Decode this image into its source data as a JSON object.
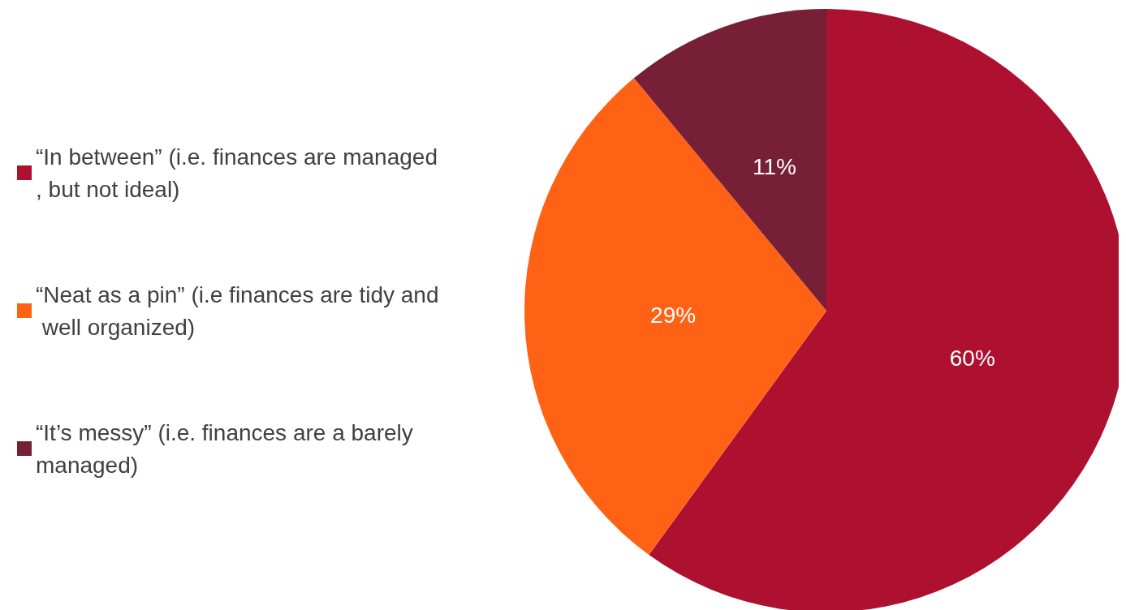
{
  "chart_data": {
    "type": "pie",
    "categories": [
      "“In between” (i.e. finances are managed, but not ideal)",
      "“Neat as a pin” (i.e finances are tidy and well organized)",
      "“It’s messy” (i.e. finances are a barely managed)"
    ],
    "values": [
      60,
      29,
      11
    ],
    "value_labels": [
      "60%",
      "29%",
      "11%"
    ],
    "colors": [
      "#ae1030",
      "#ff6115",
      "#771f36"
    ],
    "legend": "left"
  }
}
